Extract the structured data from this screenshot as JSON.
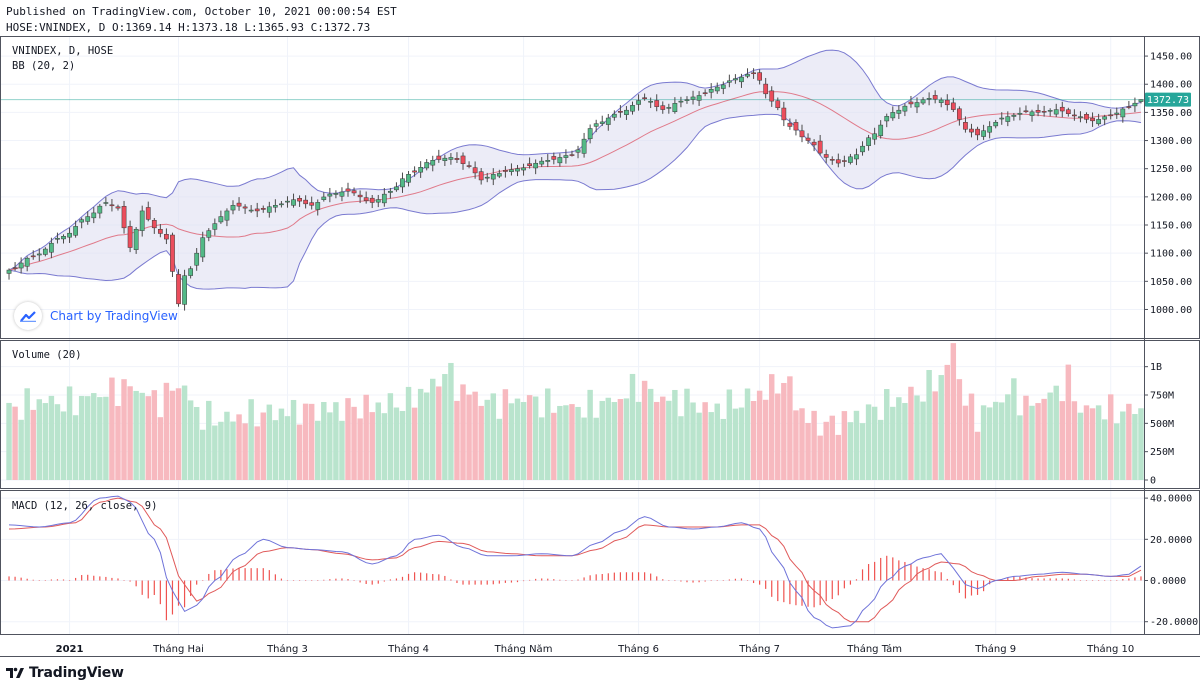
{
  "header": {
    "published": "Published on TradingView.com, October 10, 2021 00:00:54 EST",
    "ohlc_line": "HOSE:VNINDEX, D O:1369.14 H:1373.18 L:1365.93 C:1372.73"
  },
  "colors": {
    "up_candle": "#53b987",
    "down_candle": "#eb4d5c",
    "up_volume": "#b9e4cd",
    "down_volume": "#f7b9bf",
    "bb_fill": "#dcdcf0",
    "bb_band": "#7a7ad0",
    "bb_basis": "#e07a8a",
    "macd_line": "#6f73d9",
    "signal_line": "#e05a5a",
    "histogram": "#ef5350",
    "last_price": "#26a69a",
    "brand": "#2962ff"
  },
  "watermark": {
    "text": "Chart by TradingView"
  },
  "footer": {
    "brand": "TradingView"
  },
  "chart_data": [
    {
      "type": "candlestick",
      "legend": [
        "VNINDEX, D, HOSE",
        "BB (20, 2)"
      ],
      "indicator": "Bollinger Bands (20, 2)",
      "y_ticks": [
        1000,
        1050,
        1100,
        1150,
        1200,
        1250,
        1300,
        1350,
        1400,
        1450
      ],
      "y_tick_labels": [
        "1000.00",
        "1050.00",
        "1100.00",
        "1150.00",
        "1200.00",
        "1250.00",
        "1300.00",
        "1350.00",
        "1400.00",
        "1450.00"
      ],
      "ylim": [
        960,
        1475
      ],
      "last_price": 1372.73,
      "last_price_label": "1372.73",
      "x_tick_labels": [
        "2021",
        "Tháng Hai",
        "Tháng 3",
        "Tháng 4",
        "Tháng Năm",
        "Tháng 6",
        "Tháng 7",
        "Tháng Tám",
        "Tháng 9",
        "Tháng 10"
      ],
      "x_tick_bar_index": [
        10,
        28,
        46,
        66,
        85,
        104,
        124,
        143,
        163,
        182
      ],
      "anchors": [
        [
          0,
          1070
        ],
        [
          4,
          1095
        ],
        [
          9,
          1130
        ],
        [
          13,
          1165
        ],
        [
          16,
          1190
        ],
        [
          18,
          1180
        ],
        [
          20,
          1110
        ],
        [
          22,
          1175
        ],
        [
          24,
          1145
        ],
        [
          26,
          1125
        ],
        [
          28,
          1010
        ],
        [
          29,
          1060
        ],
        [
          33,
          1140
        ],
        [
          35,
          1165
        ],
        [
          37,
          1185
        ],
        [
          41,
          1175
        ],
        [
          44,
          1185
        ],
        [
          47,
          1195
        ],
        [
          50,
          1185
        ],
        [
          53,
          1205
        ],
        [
          56,
          1210
        ],
        [
          60,
          1190
        ],
        [
          63,
          1210
        ],
        [
          66,
          1240
        ],
        [
          70,
          1265
        ],
        [
          73,
          1270
        ],
        [
          76,
          1255
        ],
        [
          78,
          1230
        ],
        [
          80,
          1240
        ],
        [
          84,
          1250
        ],
        [
          89,
          1265
        ],
        [
          93,
          1275
        ],
        [
          97,
          1330
        ],
        [
          101,
          1350
        ],
        [
          105,
          1375
        ],
        [
          108,
          1355
        ],
        [
          111,
          1370
        ],
        [
          114,
          1380
        ],
        [
          117,
          1395
        ],
        [
          120,
          1410
        ],
        [
          123,
          1420
        ],
        [
          126,
          1370
        ],
        [
          129,
          1325
        ],
        [
          132,
          1300
        ],
        [
          135,
          1270
        ],
        [
          137,
          1260
        ],
        [
          140,
          1275
        ],
        [
          142,
          1305
        ],
        [
          146,
          1350
        ],
        [
          149,
          1365
        ],
        [
          152,
          1375
        ],
        [
          154,
          1372
        ],
        [
          156,
          1355
        ],
        [
          158,
          1320
        ],
        [
          160,
          1310
        ],
        [
          162,
          1325
        ],
        [
          164,
          1340
        ],
        [
          166,
          1345
        ],
        [
          168,
          1352
        ],
        [
          170,
          1350
        ],
        [
          173,
          1355
        ],
        [
          176,
          1345
        ],
        [
          179,
          1335
        ],
        [
          182,
          1345
        ],
        [
          185,
          1360
        ],
        [
          187,
          1372.73
        ]
      ]
    },
    {
      "type": "bar",
      "legend": "Volume (20)",
      "y_ticks": [
        0,
        250,
        500,
        750,
        1000
      ],
      "y_tick_labels": [
        "0",
        "250M",
        "500M",
        "750M",
        "1B"
      ],
      "ylim": [
        0,
        1200
      ],
      "anchors": [
        [
          0,
          620
        ],
        [
          5,
          700
        ],
        [
          10,
          680
        ],
        [
          15,
          760
        ],
        [
          20,
          820
        ],
        [
          25,
          700
        ],
        [
          28,
          850
        ],
        [
          32,
          560
        ],
        [
          36,
          540
        ],
        [
          40,
          580
        ],
        [
          45,
          600
        ],
        [
          50,
          620
        ],
        [
          55,
          630
        ],
        [
          60,
          650
        ],
        [
          65,
          680
        ],
        [
          70,
          820
        ],
        [
          72,
          960
        ],
        [
          75,
          780
        ],
        [
          80,
          680
        ],
        [
          85,
          720
        ],
        [
          90,
          660
        ],
        [
          95,
          640
        ],
        [
          100,
          700
        ],
        [
          104,
          830
        ],
        [
          108,
          720
        ],
        [
          112,
          700
        ],
        [
          116,
          620
        ],
        [
          120,
          680
        ],
        [
          124,
          760
        ],
        [
          128,
          870
        ],
        [
          132,
          540
        ],
        [
          135,
          480
        ],
        [
          138,
          530
        ],
        [
          142,
          600
        ],
        [
          146,
          700
        ],
        [
          150,
          760
        ],
        [
          154,
          900
        ],
        [
          156,
          1160
        ],
        [
          158,
          700
        ],
        [
          160,
          560
        ],
        [
          162,
          640
        ],
        [
          164,
          720
        ],
        [
          166,
          800
        ],
        [
          168,
          640
        ],
        [
          170,
          700
        ],
        [
          173,
          780
        ],
        [
          175,
          880
        ],
        [
          177,
          620
        ],
        [
          180,
          640
        ],
        [
          183,
          600
        ],
        [
          186,
          620
        ]
      ]
    },
    {
      "type": "line",
      "legend": "MACD (12, 26, close, 9)",
      "y_ticks": [
        -20,
        0,
        20,
        40
      ],
      "y_tick_labels": [
        "-20.0000",
        "0.0000",
        "20.0000",
        "40.0000"
      ],
      "ylim": [
        -25,
        42
      ],
      "series": [
        {
          "name": "MACD",
          "anchors": [
            [
              0,
              27
            ],
            [
              5,
              26
            ],
            [
              10,
              28
            ],
            [
              15,
              40
            ],
            [
              18,
              41
            ],
            [
              20,
              38
            ],
            [
              24,
              20
            ],
            [
              27,
              -5
            ],
            [
              29,
              -15
            ],
            [
              31,
              -12
            ],
            [
              34,
              0
            ],
            [
              38,
              12
            ],
            [
              42,
              20
            ],
            [
              46,
              16
            ],
            [
              50,
              15
            ],
            [
              55,
              14
            ],
            [
              60,
              8
            ],
            [
              64,
              12
            ],
            [
              67,
              20
            ],
            [
              71,
              22
            ],
            [
              75,
              16
            ],
            [
              79,
              12
            ],
            [
              83,
              12
            ],
            [
              88,
              13
            ],
            [
              93,
              12
            ],
            [
              97,
              18
            ],
            [
              101,
              24
            ],
            [
              105,
              31
            ],
            [
              109,
              26
            ],
            [
              113,
              25
            ],
            [
              117,
              26
            ],
            [
              121,
              28
            ],
            [
              124,
              25
            ],
            [
              127,
              10
            ],
            [
              130,
              -5
            ],
            [
              133,
              -18
            ],
            [
              136,
              -23
            ],
            [
              139,
              -22
            ],
            [
              142,
              -12
            ],
            [
              145,
              0
            ],
            [
              148,
              7
            ],
            [
              151,
              11
            ],
            [
              154,
              13
            ],
            [
              156,
              6
            ],
            [
              158,
              -2
            ],
            [
              160,
              -4
            ],
            [
              163,
              0
            ],
            [
              166,
              2
            ],
            [
              170,
              3
            ],
            [
              174,
              4
            ],
            [
              178,
              3
            ],
            [
              182,
              2
            ],
            [
              185,
              3
            ],
            [
              187,
              7
            ]
          ]
        },
        {
          "name": "Signal",
          "anchors": [
            [
              0,
              25
            ],
            [
              6,
              26
            ],
            [
              11,
              28
            ],
            [
              15,
              38
            ],
            [
              18,
              40
            ],
            [
              21,
              38
            ],
            [
              25,
              25
            ],
            [
              29,
              -2
            ],
            [
              31,
              -10
            ],
            [
              34,
              -5
            ],
            [
              38,
              6
            ],
            [
              42,
              14
            ],
            [
              46,
              16
            ],
            [
              50,
              15
            ],
            [
              55,
              13
            ],
            [
              60,
              10
            ],
            [
              64,
              11
            ],
            [
              67,
              16
            ],
            [
              71,
              19
            ],
            [
              75,
              18
            ],
            [
              79,
              14
            ],
            [
              83,
              13
            ],
            [
              88,
              12
            ],
            [
              93,
              12
            ],
            [
              97,
              15
            ],
            [
              101,
              20
            ],
            [
              105,
              27
            ],
            [
              109,
              26
            ],
            [
              113,
              26
            ],
            [
              117,
              26
            ],
            [
              121,
              27
            ],
            [
              124,
              27
            ],
            [
              127,
              20
            ],
            [
              130,
              7
            ],
            [
              133,
              -5
            ],
            [
              136,
              -14
            ],
            [
              139,
              -20
            ],
            [
              142,
              -20
            ],
            [
              145,
              -12
            ],
            [
              148,
              -2
            ],
            [
              151,
              5
            ],
            [
              154,
              9
            ],
            [
              157,
              8
            ],
            [
              160,
              3
            ],
            [
              163,
              0
            ],
            [
              166,
              0
            ],
            [
              170,
              2
            ],
            [
              174,
              3
            ],
            [
              178,
              3
            ],
            [
              182,
              2
            ],
            [
              185,
              2
            ],
            [
              187,
              5
            ]
          ]
        }
      ]
    }
  ]
}
